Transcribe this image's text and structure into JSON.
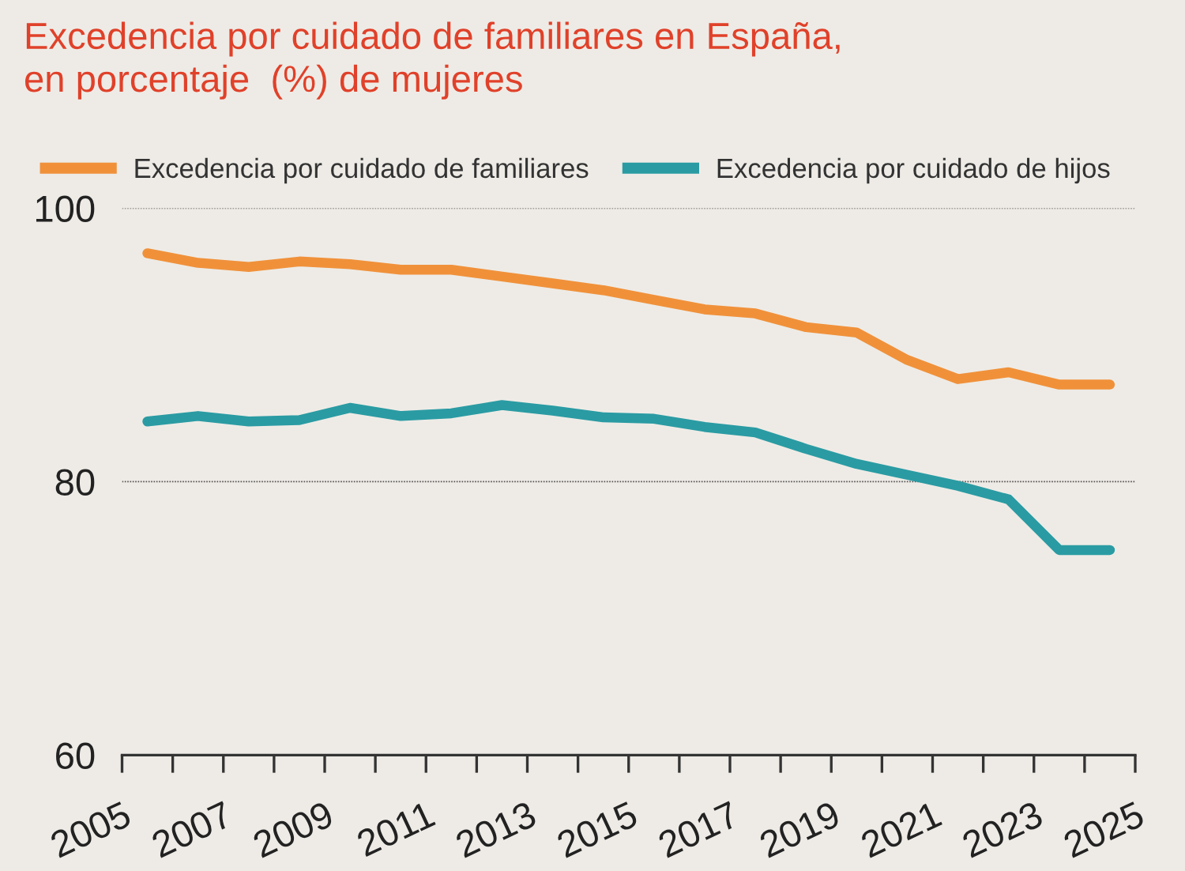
{
  "chart_data": {
    "type": "line",
    "title": "Excedencia por cuidado de familiares en España,\nen porcentaje  (%) de mujeres",
    "x": [
      2005.5,
      2006.5,
      2007.5,
      2008.5,
      2009.5,
      2010.5,
      2011.5,
      2012.5,
      2013.5,
      2014.5,
      2015.5,
      2016.5,
      2017.5,
      2018.5,
      2019.5,
      2020.5,
      2021.5,
      2022.5,
      2023.5,
      2024.5
    ],
    "series": [
      {
        "name": "Excedencia por cuidado de familiares",
        "color": "#f0913a",
        "values": [
          96.7,
          96.0,
          95.7,
          96.1,
          95.9,
          95.5,
          95.5,
          95.0,
          94.5,
          94.0,
          93.3,
          92.6,
          92.3,
          91.3,
          90.9,
          88.9,
          87.5,
          88.0,
          87.1,
          87.1
        ]
      },
      {
        "name": "Excedencia por cuidado de hijos",
        "color": "#2a9ba3",
        "values": [
          84.4,
          84.8,
          84.4,
          84.5,
          85.4,
          84.8,
          85.0,
          85.6,
          85.2,
          84.7,
          84.6,
          84.0,
          83.6,
          82.4,
          81.3,
          80.5,
          79.7,
          78.7,
          75.0,
          75.0
        ]
      }
    ],
    "xlim": [
      2005,
      2025
    ],
    "xticks": [
      2005,
      {
        "value": 2006,
        "label": null
      },
      2007,
      {
        "value": 2008,
        "label": null
      },
      2009,
      {
        "value": 2010,
        "label": null
      },
      2011,
      {
        "value": 2012,
        "label": null
      },
      2013,
      {
        "value": 2014,
        "label": null
      },
      2015,
      {
        "value": 2016,
        "label": null
      },
      2017,
      {
        "value": 2018,
        "label": null
      },
      2019,
      {
        "value": 2020,
        "label": null
      },
      2021,
      {
        "value": 2022,
        "label": null
      },
      2023,
      {
        "value": 2024,
        "label": null
      },
      2025
    ],
    "ylim": [
      60,
      100
    ],
    "yticks": [
      60,
      80,
      100
    ],
    "grid": "y",
    "legend": "top",
    "marker": "none",
    "line_style": "solid"
  }
}
